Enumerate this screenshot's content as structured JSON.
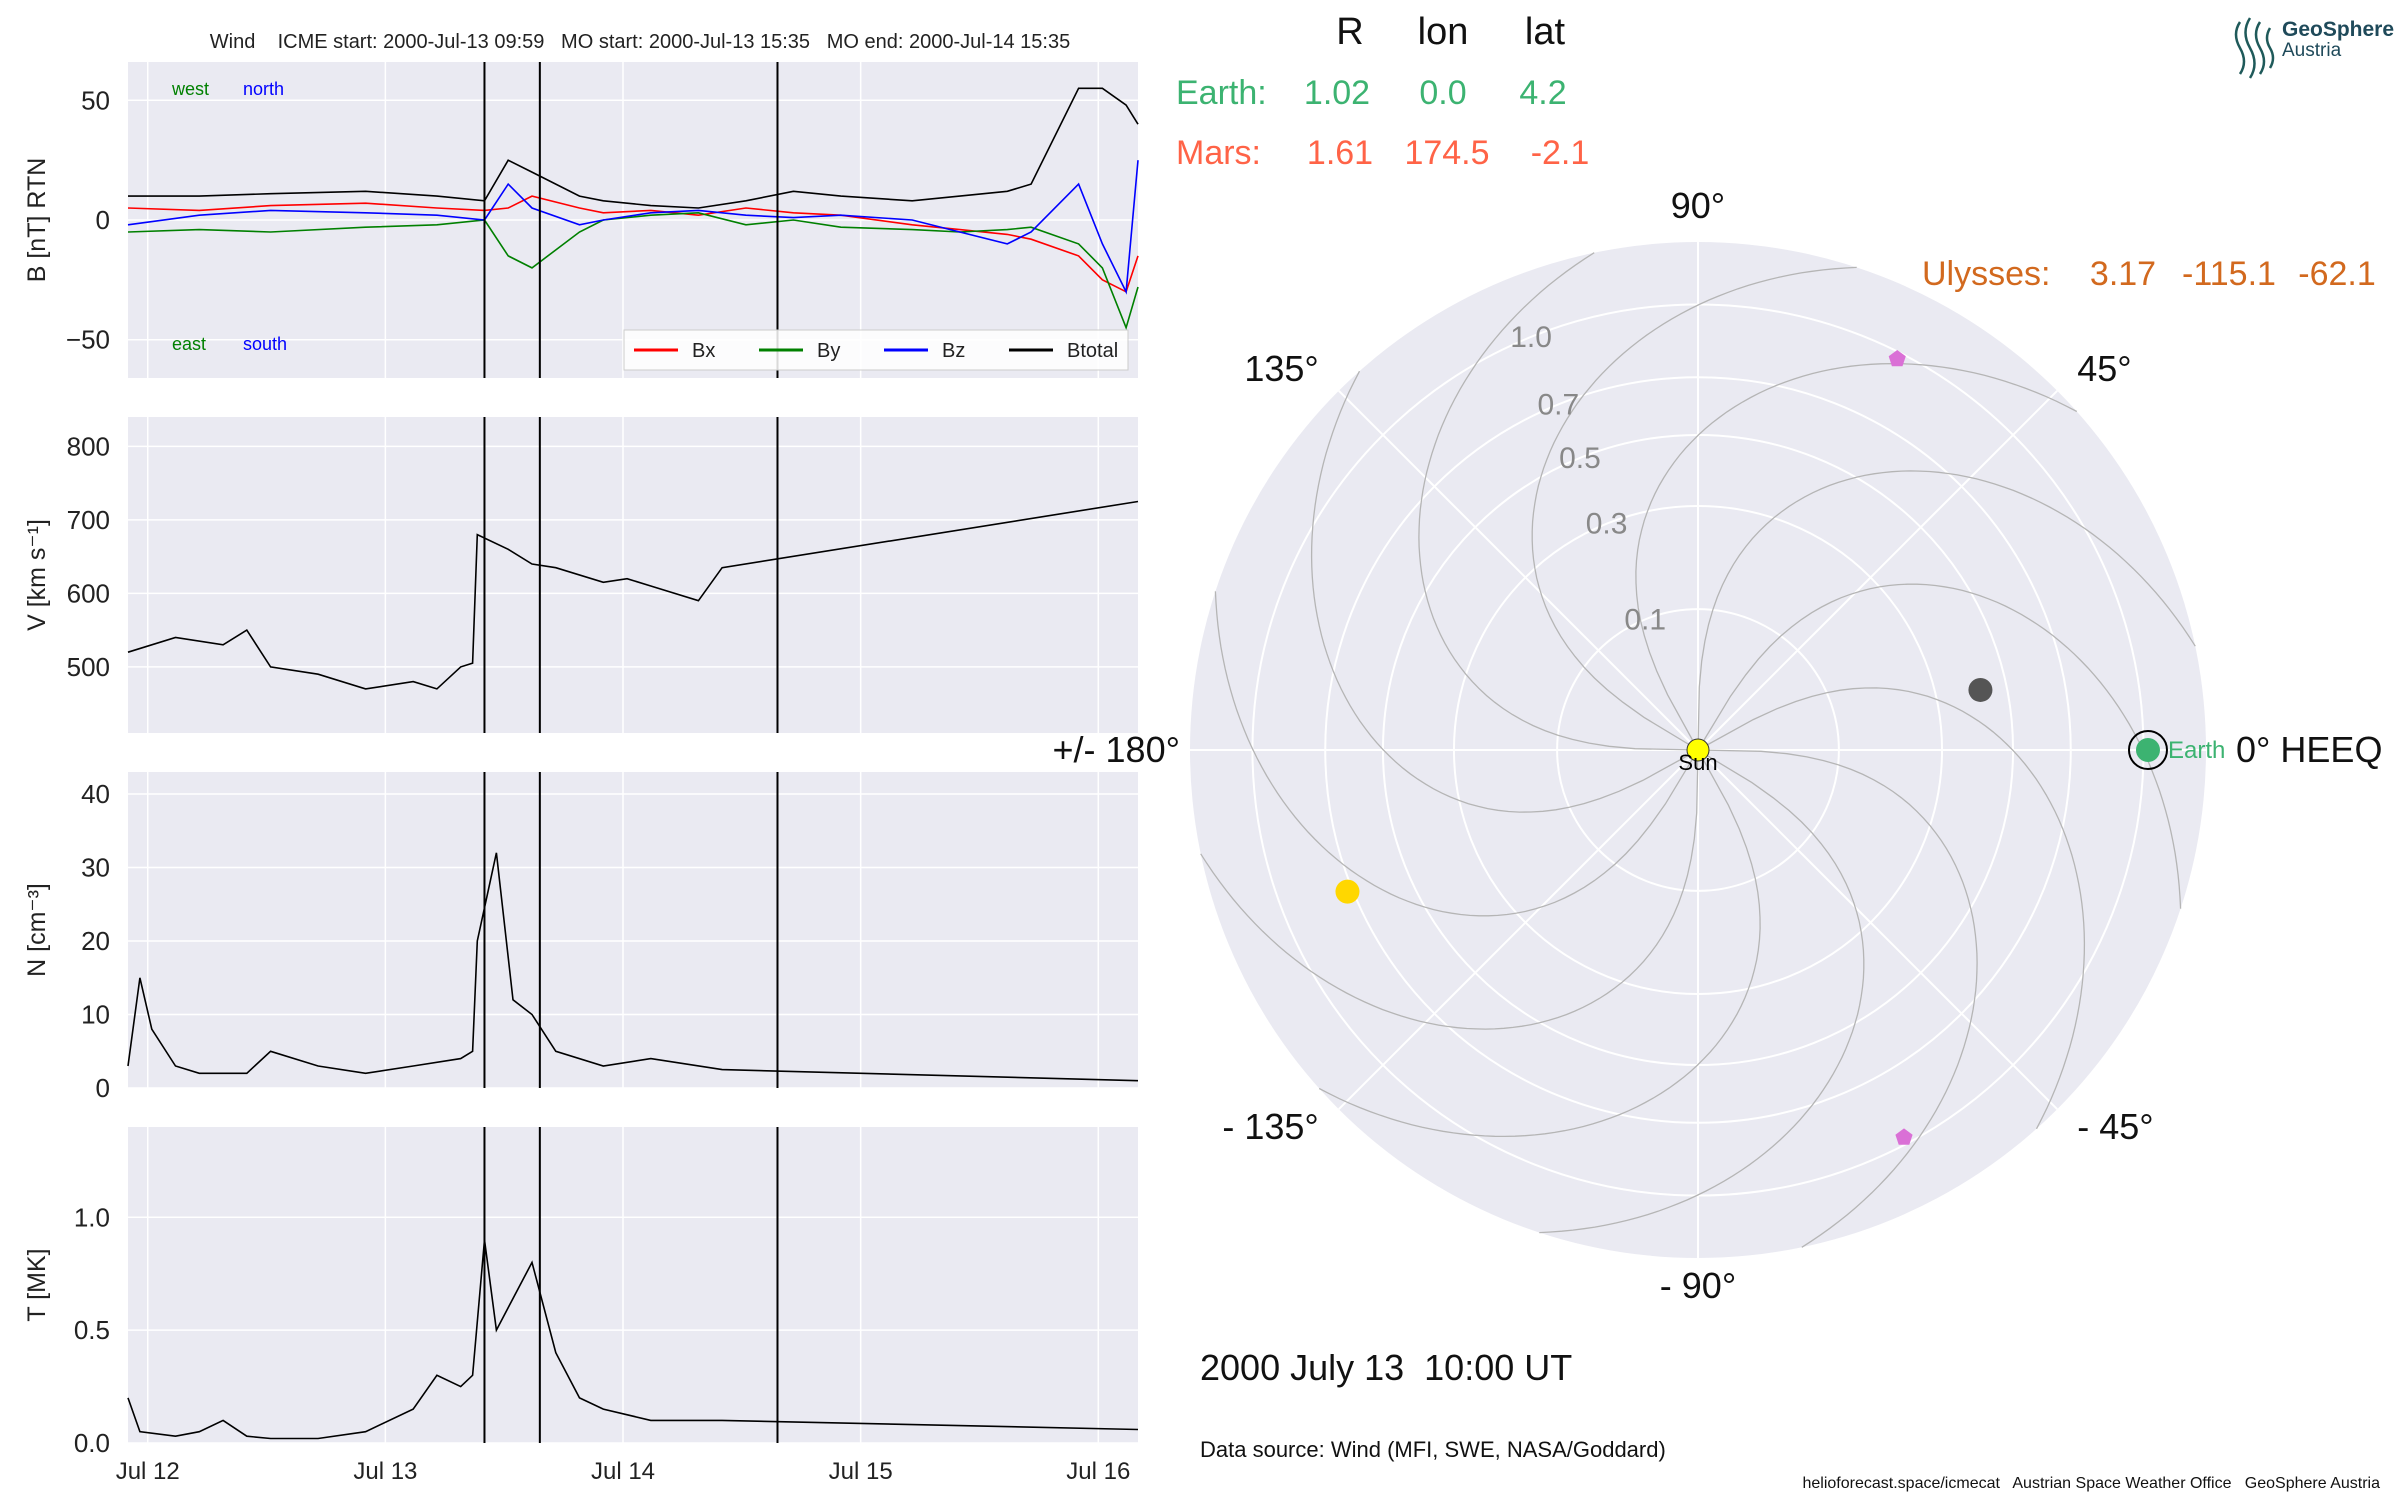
{
  "header": "Wind    ICME start: 2000-Jul-13 09:59   MO start: 2000-Jul-13 15:35   MO end: 2000-Jul-14 15:35",
  "logo": {
    "line1": "GeoSphere",
    "line2": "Austria"
  },
  "position_table": {
    "headers": [
      "R",
      "lon",
      "lat"
    ],
    "earth": {
      "label": "Earth:",
      "R": "1.02",
      "lon": "0.0",
      "lat": "4.2"
    },
    "mars": {
      "label": "Mars:",
      "R": "1.61",
      "lon": "174.5",
      "lat": "-2.1"
    },
    "ulysses": {
      "label": "Ulysses:",
      "R": "3.17",
      "lon": "-115.1",
      "lat": "-62.1"
    }
  },
  "date_label": "2000 July 13  10:00 UT",
  "data_source": "Data source: Wind (MFI, SWE, NASA/Goddard)",
  "footer": "helioforecast.space/icmecat   Austrian Space Weather Office   GeoSphere Austria",
  "colors": {
    "bx": "#ff0000",
    "by": "#008000",
    "bz": "#0000ff",
    "btotal": "#000000",
    "earth": "#3cb371",
    "mars": "#ff6347",
    "ulysses": "#d2691e",
    "sun": "#ffff00",
    "venus": "#ffd700",
    "mercury": "#555555",
    "pentagon": "#da70d6",
    "panel_bg": "#eaeaf2"
  },
  "chart_data": [
    {
      "type": "line",
      "panel": "B",
      "ylabel": "B [nT] RTN",
      "ylim": [
        -66,
        66
      ],
      "yticks": [
        "50",
        "0",
        "−50"
      ],
      "ytick_values": [
        50,
        0,
        -50
      ],
      "xlim_days": [
        "2000-07-11T22:00",
        "2000-07-16T04:00"
      ],
      "annotations": {
        "west": "west",
        "north": "north",
        "east": "east",
        "south": "south"
      },
      "legend": {
        "placement": "lower-right",
        "entries": [
          "Bx",
          "By",
          "Bz",
          "Btotal"
        ]
      },
      "series": [
        {
          "name": "Bx",
          "x": [
            0.0,
            0.3,
            0.6,
            1.0,
            1.3,
            1.5,
            1.6,
            1.7,
            1.9,
            2.0,
            2.2,
            2.4,
            2.6,
            2.8,
            3.0,
            3.3,
            3.5,
            3.7,
            3.8,
            4.0,
            4.1,
            4.2,
            4.25
          ],
          "y": [
            5,
            4,
            6,
            7,
            5,
            4,
            5,
            10,
            5,
            3,
            4,
            2,
            5,
            3,
            2,
            -2,
            -4,
            -6,
            -8,
            -15,
            -25,
            -30,
            -15
          ]
        },
        {
          "name": "By",
          "x": [
            0.0,
            0.3,
            0.6,
            1.0,
            1.3,
            1.5,
            1.6,
            1.7,
            1.9,
            2.0,
            2.2,
            2.4,
            2.6,
            2.8,
            3.0,
            3.3,
            3.5,
            3.7,
            3.8,
            4.0,
            4.1,
            4.2,
            4.25
          ],
          "y": [
            -5,
            -4,
            -5,
            -3,
            -2,
            0,
            -15,
            -20,
            -5,
            0,
            2,
            3,
            -2,
            0,
            -3,
            -4,
            -5,
            -4,
            -3,
            -10,
            -20,
            -45,
            -28
          ]
        },
        {
          "name": "Bz",
          "x": [
            0.0,
            0.3,
            0.6,
            1.0,
            1.3,
            1.5,
            1.6,
            1.7,
            1.9,
            2.0,
            2.2,
            2.4,
            2.6,
            2.8,
            3.0,
            3.3,
            3.5,
            3.7,
            3.8,
            4.0,
            4.1,
            4.2,
            4.25
          ],
          "y": [
            -2,
            2,
            4,
            3,
            2,
            0,
            15,
            5,
            -2,
            0,
            3,
            4,
            2,
            1,
            2,
            0,
            -5,
            -10,
            -5,
            15,
            -10,
            -30,
            25
          ]
        },
        {
          "name": "Btotal",
          "x": [
            0.0,
            0.3,
            0.6,
            1.0,
            1.3,
            1.5,
            1.6,
            1.7,
            1.9,
            2.0,
            2.2,
            2.4,
            2.6,
            2.8,
            3.0,
            3.3,
            3.5,
            3.7,
            3.8,
            4.0,
            4.1,
            4.2,
            4.25
          ],
          "y": [
            10,
            10,
            11,
            12,
            10,
            8,
            25,
            20,
            10,
            8,
            6,
            5,
            8,
            12,
            10,
            8,
            10,
            12,
            15,
            55,
            55,
            48,
            40
          ]
        }
      ]
    },
    {
      "type": "line",
      "panel": "V",
      "ylabel": "V [km s⁻¹]",
      "ylim": [
        410,
        840
      ],
      "yticks": [
        "800",
        "700",
        "600",
        "500"
      ],
      "ytick_values": [
        800,
        700,
        600,
        500
      ],
      "series": [
        {
          "name": "",
          "x": [
            0.0,
            0.2,
            0.4,
            0.5,
            0.6,
            0.8,
            1.0,
            1.2,
            1.3,
            1.4,
            1.45,
            1.47,
            1.6,
            1.7,
            1.8,
            2.0,
            2.1,
            2.2,
            2.4,
            2.5,
            4.25
          ],
          "y": [
            520,
            540,
            530,
            550,
            500,
            490,
            470,
            480,
            470,
            500,
            505,
            680,
            660,
            640,
            635,
            615,
            620,
            610,
            590,
            635,
            725
          ]
        }
      ]
    },
    {
      "type": "line",
      "panel": "N",
      "ylabel": "N [cm⁻³]",
      "ylim": [
        0,
        43
      ],
      "yticks": [
        "40",
        "30",
        "20",
        "10",
        "0"
      ],
      "ytick_values": [
        40,
        30,
        20,
        10,
        0
      ],
      "series": [
        {
          "name": "",
          "x": [
            0.0,
            0.05,
            0.1,
            0.2,
            0.3,
            0.5,
            0.6,
            0.8,
            1.0,
            1.2,
            1.4,
            1.45,
            1.47,
            1.55,
            1.62,
            1.7,
            1.8,
            2.0,
            2.2,
            2.5,
            4.25
          ],
          "y": [
            3,
            15,
            8,
            3,
            2,
            2,
            5,
            3,
            2,
            3,
            4,
            5,
            20,
            32,
            12,
            10,
            5,
            3,
            4,
            2.5,
            1
          ]
        }
      ]
    },
    {
      "type": "line",
      "panel": "T",
      "ylabel": "T [MK]",
      "ylim": [
        0,
        1.4
      ],
      "yticks": [
        "1.0",
        "0.5",
        "0.0"
      ],
      "ytick_values": [
        1.0,
        0.5,
        0.0
      ],
      "xticks": [
        "Jul 12",
        "Jul 13",
        "Jul 14",
        "Jul 15",
        "Jul 16"
      ],
      "xtick_values": [
        0.083,
        1.083,
        2.083,
        3.083,
        4.083
      ],
      "series": [
        {
          "name": "",
          "x": [
            0.0,
            0.05,
            0.2,
            0.3,
            0.4,
            0.5,
            0.6,
            0.8,
            1.0,
            1.2,
            1.3,
            1.4,
            1.45,
            1.5,
            1.55,
            1.6,
            1.7,
            1.8,
            1.9,
            2.0,
            2.2,
            2.5,
            4.25
          ],
          "y": [
            0.2,
            0.05,
            0.03,
            0.05,
            0.1,
            0.03,
            0.02,
            0.02,
            0.05,
            0.15,
            0.3,
            0.25,
            0.3,
            0.9,
            0.5,
            0.6,
            0.8,
            0.4,
            0.2,
            0.15,
            0.1,
            0.1,
            0.06
          ]
        }
      ]
    },
    {
      "type": "polar",
      "panel": "orbit",
      "radial_ticks": [
        "0.1",
        "0.3",
        "0.5",
        "0.7",
        "1.0"
      ],
      "radial_values": [
        0.1,
        0.3,
        0.5,
        0.7,
        1.0
      ],
      "angle_labels": [
        "90°",
        "45°",
        "0° HEEQ",
        "- 45°",
        "- 90°",
        "- 135°",
        "+/- 180°",
        "135°"
      ],
      "angle_values": [
        90,
        45,
        0,
        -45,
        -90,
        -135,
        180,
        135
      ],
      "bodies": [
        {
          "name": "Sun",
          "r": 0.0,
          "lon": 0
        },
        {
          "name": "Earth",
          "r": 1.02,
          "lon": 0.0
        },
        {
          "name": "",
          "r": 0.42,
          "lon": 12,
          "kind": "mercury"
        },
        {
          "name": "",
          "r": 0.72,
          "lon": -158,
          "kind": "venus"
        },
        {
          "name": "",
          "r": 0.97,
          "lon": 63,
          "kind": "pentagon"
        },
        {
          "name": "",
          "r": 0.97,
          "lon": -62,
          "kind": "pentagon"
        }
      ]
    }
  ]
}
